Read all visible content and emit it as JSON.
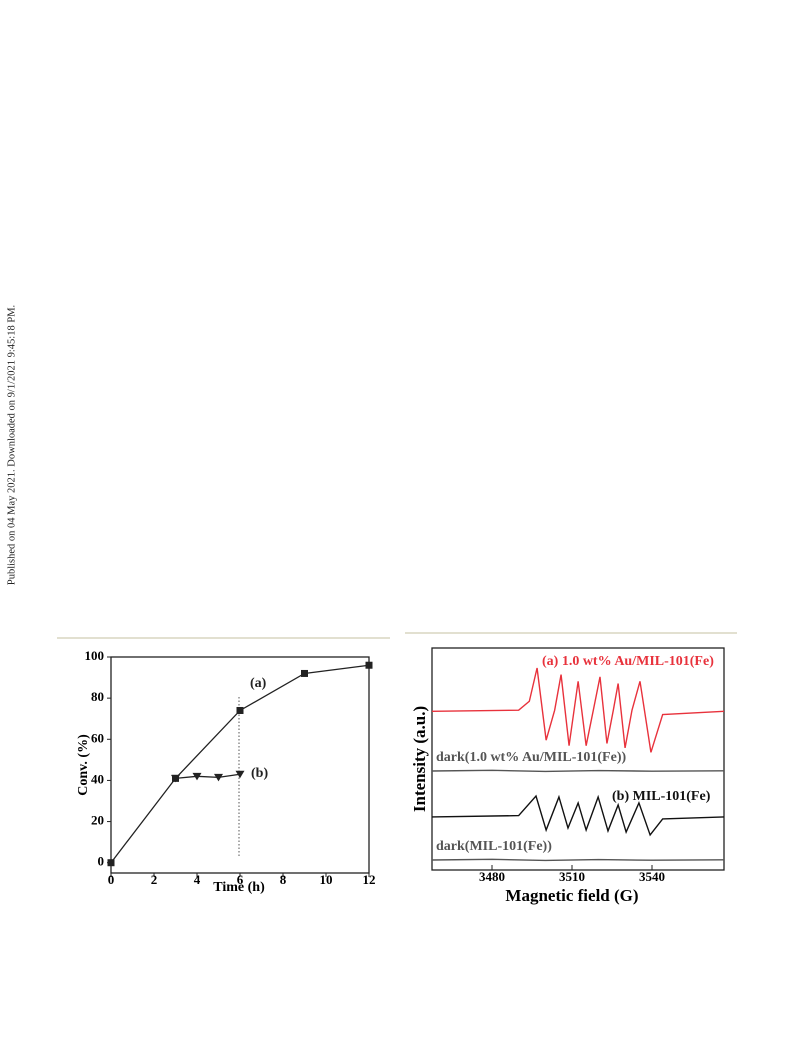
{
  "side_note": "Published on 04 May 2021. Downloaded on 9/1/2021 9:45:18 PM.",
  "chart_data": [
    {
      "type": "line",
      "x_label": "Time (h)",
      "y_label": "Conv. (%)",
      "xlim": [
        0,
        12
      ],
      "xticks": [
        0,
        2,
        4,
        6,
        8,
        10,
        12
      ],
      "ylim": [
        -5,
        100
      ],
      "yticks": [
        0,
        20,
        40,
        60,
        80,
        100
      ],
      "series": [
        {
          "name": "(a)",
          "color": "#222222",
          "marker": "square",
          "x": [
            0,
            3,
            6,
            9,
            12
          ],
          "values": [
            0,
            41,
            74,
            92,
            96
          ]
        },
        {
          "name": "(b)",
          "color": "#222222",
          "marker": "triangle-down",
          "x": [
            3,
            4,
            5,
            6
          ],
          "values": [
            41,
            42,
            41.5,
            43
          ]
        }
      ]
    },
    {
      "type": "line",
      "x_label": "Magnetic field (G)",
      "y_label": "Intensity (a.u.)",
      "xlim": [
        3457.5,
        3567
      ],
      "xticks": [
        3480,
        3510,
        3540
      ],
      "ylim": [
        0,
        100
      ],
      "series": [
        {
          "name": "(a) 1.0 wt% Au/MIL-101(Fe)",
          "color": "#e8323c",
          "x": [
            3457.5,
            3490,
            3494,
            3496.9,
            3500.3,
            3503.5,
            3505.9,
            3508.9,
            3512.3,
            3515.3,
            3518,
            3520.5,
            3523.1,
            3525.5,
            3527.3,
            3529.9,
            3532.5,
            3535.5,
            3539.6,
            3544,
            3567
          ],
          "values": [
            71.5,
            72,
            76,
            91,
            58.5,
            72,
            88,
            56,
            85,
            56,
            72,
            87,
            57,
            72,
            84,
            55,
            72,
            85,
            53,
            70,
            71.5
          ]
        },
        {
          "name": "dark(1.0 wt% Au/MIL-101(Fe))",
          "color": "#555555",
          "x": [
            3457.5,
            3480,
            3500,
            3520,
            3540,
            3567
          ],
          "values": [
            44.6,
            44.9,
            44.4,
            44.8,
            44.5,
            44.7
          ]
        },
        {
          "name": "(b) MIL-101(Fe)",
          "color": "#111111",
          "x": [
            3457.5,
            3490,
            3496.5,
            3500.3,
            3505.1,
            3508.5,
            3512.3,
            3515.3,
            3519.8,
            3523.5,
            3527.3,
            3530.3,
            3535.1,
            3539.3,
            3544,
            3567
          ],
          "values": [
            23.9,
            24.5,
            33.3,
            18,
            32.9,
            18.9,
            30.2,
            18,
            32.9,
            17.6,
            29.3,
            17.1,
            30.2,
            15.8,
            23,
            23.9
          ]
        },
        {
          "name": "dark(MIL-101(Fe))",
          "color": "#555555",
          "x": [
            3457.5,
            3480,
            3500,
            3520,
            3540,
            3567
          ],
          "values": [
            4.5,
            4.8,
            4.3,
            4.7,
            4.4,
            4.6
          ]
        }
      ]
    }
  ]
}
